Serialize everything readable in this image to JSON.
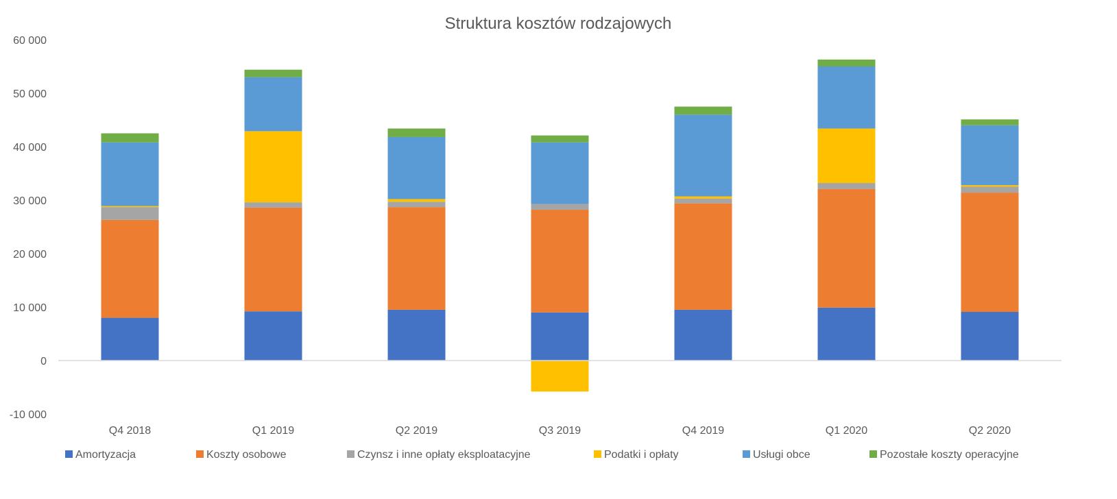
{
  "chart_data": {
    "type": "bar",
    "stacked": true,
    "title": "Struktura kosztów rodzajowych",
    "xlabel": "",
    "ylabel": "",
    "categories": [
      "Q4 2018",
      "Q1 2019",
      "Q2 2019",
      "Q3 2019",
      "Q4 2019",
      "Q1 2020",
      "Q2 2020"
    ],
    "ylim": [
      -10000,
      60000
    ],
    "yticks": [
      -10000,
      0,
      10000,
      20000,
      30000,
      40000,
      50000,
      60000
    ],
    "ytick_labels": [
      "-10 000",
      "0",
      "10 000",
      "20 000",
      "30 000",
      "40 000",
      "50 000",
      "60 000"
    ],
    "grid": false,
    "legend_position": "bottom",
    "series": [
      {
        "name": "Amortyzacja",
        "color": "#4472C4",
        "values": [
          8000,
          9200,
          9500,
          9000,
          9500,
          9900,
          9100
        ]
      },
      {
        "name": "Koszty osobowe",
        "color": "#ED7D31",
        "values": [
          18300,
          19400,
          19200,
          19200,
          19900,
          22200,
          22300
        ]
      },
      {
        "name": "Czynsz i inne opłaty eksploatacyjne",
        "color": "#A5A5A5",
        "values": [
          2400,
          1000,
          1000,
          1100,
          900,
          1100,
          1100
        ]
      },
      {
        "name": "Podatki i opłaty",
        "color": "#FFC000",
        "values": [
          200,
          13300,
          500,
          -5800,
          400,
          10200,
          300
        ]
      },
      {
        "name": "Usługi obce",
        "color": "#5B9BD5",
        "values": [
          11900,
          10100,
          11600,
          11500,
          15300,
          11600,
          11200
        ]
      },
      {
        "name": "Pozostałe koszty operacyjne",
        "color": "#70AD47",
        "values": [
          1700,
          1400,
          1600,
          1300,
          1500,
          1300,
          1100
        ]
      }
    ]
  }
}
